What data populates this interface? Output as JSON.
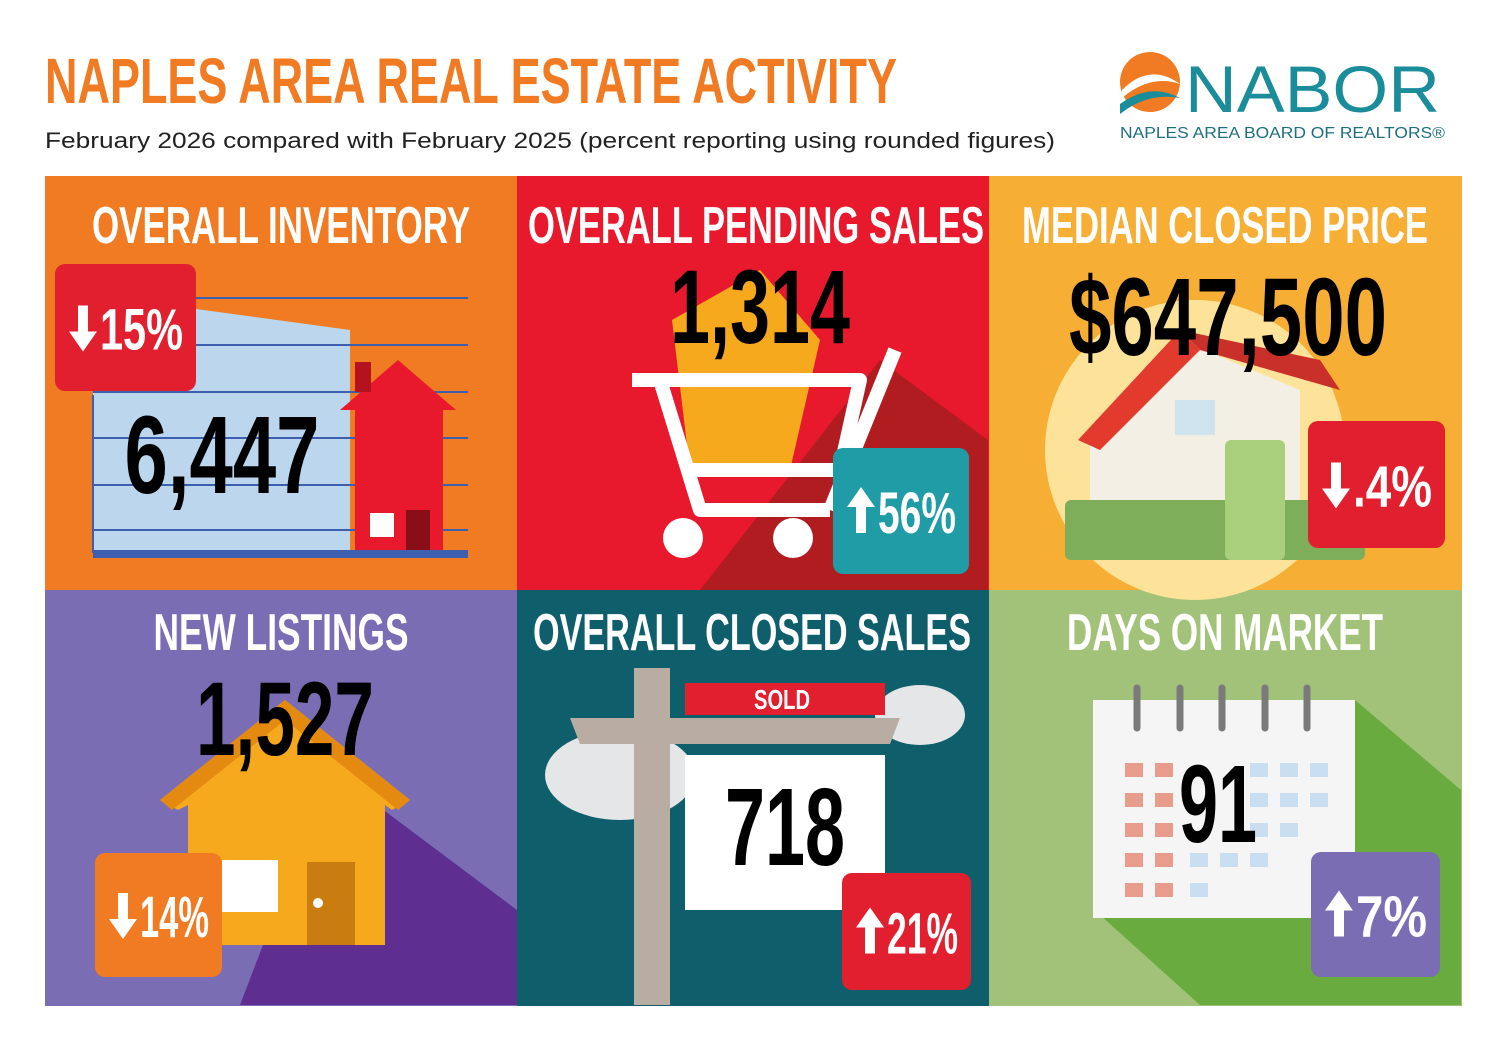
{
  "header": {
    "title": "NAPLES AREA REAL ESTATE ACTIVITY",
    "subtitle": "February 2026 compared with February 2025 (percent reporting using rounded figures)"
  },
  "logo": {
    "name": "NABOR",
    "tagline": "NAPLES AREA BOARD OF REALTORS®"
  },
  "tiles": [
    {
      "title": "OVERALL INVENTORY",
      "value": "6,447",
      "change": "15%",
      "direction": "down",
      "color": "#f07b22",
      "badge_color": "#e21f2f"
    },
    {
      "title": "OVERALL PENDING SALES",
      "value": "1,314",
      "change": "56%",
      "direction": "up",
      "color": "#e8192c",
      "badge_color": "#1f9ca6"
    },
    {
      "title": "MEDIAN CLOSED PRICE",
      "value": "$647,500",
      "change": ".4%",
      "direction": "down",
      "color": "#f6ae35",
      "badge_color": "#e21f2f"
    },
    {
      "title": "NEW LISTINGS",
      "value": "1,527",
      "change": "14%",
      "direction": "down",
      "color": "#7b6db3",
      "badge_color": "#f07b22"
    },
    {
      "title": "OVERALL CLOSED SALES",
      "value": "718",
      "change": "21%",
      "direction": "up",
      "color": "#0e5f6b",
      "badge_color": "#e21f2f",
      "sign": "SOLD"
    },
    {
      "title": "DAYS ON MARKET",
      "value": "91",
      "change": "7%",
      "direction": "up",
      "color": "#a2c27a",
      "badge_color": "#7b6db3"
    }
  ]
}
